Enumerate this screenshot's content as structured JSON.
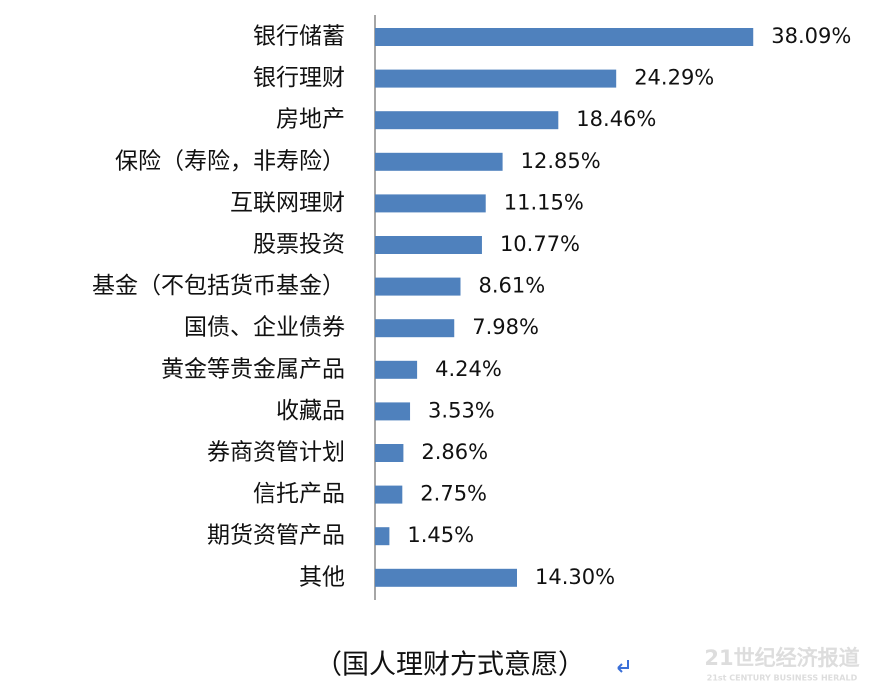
{
  "chart_data": {
    "type": "bar",
    "orientation": "horizontal",
    "color": "#4f81bd",
    "categories": [
      "银行储蓄",
      "银行理财",
      "房地产",
      "保险（寿险，非寿险）",
      "互联网理财",
      "股票投资",
      "基金（不包括货币基金）",
      "国债、企业债券",
      "黄金等贵金属产品",
      "收藏品",
      "券商资管计划",
      "信托产品",
      "期货资管产品",
      "其他"
    ],
    "values": [
      38.09,
      24.29,
      18.46,
      12.85,
      11.15,
      10.77,
      8.61,
      7.98,
      4.24,
      3.53,
      2.86,
      2.75,
      1.45,
      14.3
    ],
    "value_labels": [
      "38.09%",
      "24.29%",
      "18.46%",
      "12.85%",
      "11.15%",
      "10.77%",
      "8.61%",
      "7.98%",
      "4.24%",
      "3.53%",
      "2.86%",
      "2.75%",
      "1.45%",
      "14.30%"
    ],
    "caption": "（国人理财方式意愿）"
  },
  "watermark": {
    "title": "21世纪经济报道",
    "subtitle": "21st CENTURY BUSINESS HERALD"
  }
}
